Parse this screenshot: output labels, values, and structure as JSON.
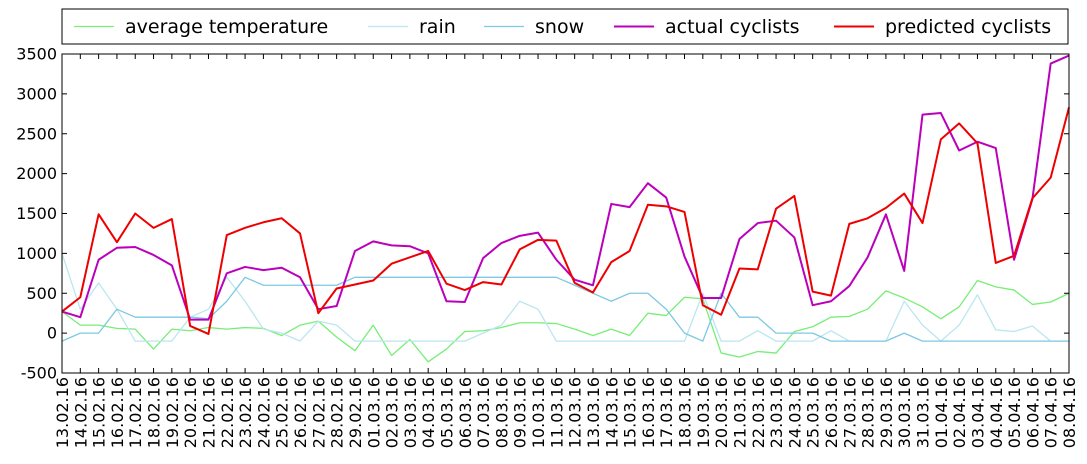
{
  "chart_data": {
    "type": "line",
    "title": "",
    "xlabel": "",
    "ylabel": "",
    "ylim": [
      -500,
      3500
    ],
    "yticks": [
      -500,
      0,
      500,
      1000,
      1500,
      2000,
      2500,
      3000,
      3500
    ],
    "grid": false,
    "legend_placement": "top",
    "x": [
      "13.02.16",
      "14.02.16",
      "15.02.16",
      "16.02.16",
      "17.02.16",
      "18.02.16",
      "19.02.16",
      "20.02.16",
      "21.02.16",
      "22.02.16",
      "23.02.16",
      "24.02.16",
      "25.02.16",
      "26.02.16",
      "27.02.16",
      "28.02.16",
      "29.02.16",
      "01.03.16",
      "02.03.16",
      "03.03.16",
      "04.03.16",
      "05.03.16",
      "06.03.16",
      "07.03.16",
      "08.03.16",
      "09.03.16",
      "10.03.16",
      "11.03.16",
      "12.03.16",
      "13.03.16",
      "14.03.16",
      "15.03.16",
      "16.03.16",
      "17.03.16",
      "18.03.16",
      "19.03.16",
      "20.03.16",
      "21.03.16",
      "22.03.16",
      "23.03.16",
      "24.03.16",
      "25.03.16",
      "26.03.16",
      "27.03.16",
      "28.03.16",
      "29.03.16",
      "30.03.16",
      "31.03.16",
      "01.04.16",
      "02.04.16",
      "03.04.16",
      "04.04.16",
      "05.04.16",
      "06.04.16",
      "07.04.16",
      "08.04.16"
    ],
    "series": [
      {
        "name": "average temperature",
        "color": "#77ee77",
        "values": [
          270,
          100,
          100,
          60,
          50,
          -200,
          50,
          30,
          70,
          50,
          70,
          60,
          -30,
          100,
          150,
          -50,
          -220,
          100,
          -280,
          -80,
          -360,
          -200,
          20,
          30,
          70,
          130,
          130,
          120,
          50,
          -30,
          50,
          -30,
          250,
          220,
          450,
          430,
          -250,
          -300,
          -230,
          -250,
          20,
          80,
          200,
          210,
          300,
          530,
          440,
          330,
          180,
          330,
          660,
          580,
          540,
          360,
          390,
          500
        ]
      },
      {
        "name": "rain",
        "color": "#bbe6f0",
        "values": [
          1000,
          300,
          630,
          300,
          -100,
          -100,
          -100,
          200,
          300,
          700,
          400,
          50,
          0,
          -100,
          150,
          100,
          -100,
          -100,
          -100,
          -100,
          -100,
          -100,
          -100,
          0,
          100,
          400,
          300,
          -100,
          -100,
          -100,
          -100,
          -100,
          -100,
          -100,
          -100,
          500,
          -100,
          -100,
          30,
          -100,
          -100,
          -100,
          30,
          -100,
          -100,
          -100,
          400,
          100,
          -100,
          100,
          480,
          40,
          20,
          90,
          -100,
          -100
        ]
      },
      {
        "name": "snow",
        "color": "#7ec8e3",
        "values": [
          -100,
          0,
          0,
          300,
          200,
          200,
          200,
          200,
          180,
          400,
          700,
          600,
          600,
          600,
          600,
          600,
          700,
          700,
          700,
          700,
          700,
          700,
          700,
          700,
          700,
          700,
          700,
          700,
          600,
          500,
          400,
          500,
          500,
          300,
          0,
          -100,
          500,
          200,
          200,
          0,
          0,
          0,
          -100,
          -100,
          -100,
          -100,
          0,
          -100,
          -100,
          -100,
          -100,
          -100,
          -100,
          -100,
          -100,
          -100
        ]
      },
      {
        "name": "actual cyclists",
        "color": "#bb00bb",
        "values": [
          270,
          200,
          920,
          1070,
          1080,
          980,
          850,
          170,
          170,
          750,
          830,
          790,
          820,
          700,
          300,
          340,
          1030,
          1150,
          1100,
          1090,
          1000,
          400,
          390,
          940,
          1130,
          1220,
          1260,
          920,
          670,
          600,
          1620,
          1580,
          1880,
          1700,
          960,
          440,
          440,
          1180,
          1380,
          1410,
          1200,
          350,
          400,
          590,
          950,
          1490,
          780,
          2740,
          2760,
          2290,
          2400,
          2320,
          920,
          1680,
          3380,
          3480
        ]
      },
      {
        "name": "predicted cyclists",
        "color": "#ee0000",
        "values": [
          270,
          450,
          1490,
          1140,
          1500,
          1320,
          1430,
          90,
          -10,
          1230,
          1320,
          1390,
          1440,
          1250,
          250,
          560,
          610,
          660,
          870,
          950,
          1030,
          620,
          540,
          640,
          610,
          1050,
          1170,
          1160,
          630,
          510,
          890,
          1030,
          1610,
          1590,
          1520,
          350,
          230,
          810,
          800,
          1560,
          1720,
          520,
          470,
          1370,
          1440,
          1570,
          1750,
          1380,
          2430,
          2630,
          2380,
          880,
          970,
          1690,
          1950,
          2830
        ]
      }
    ]
  }
}
